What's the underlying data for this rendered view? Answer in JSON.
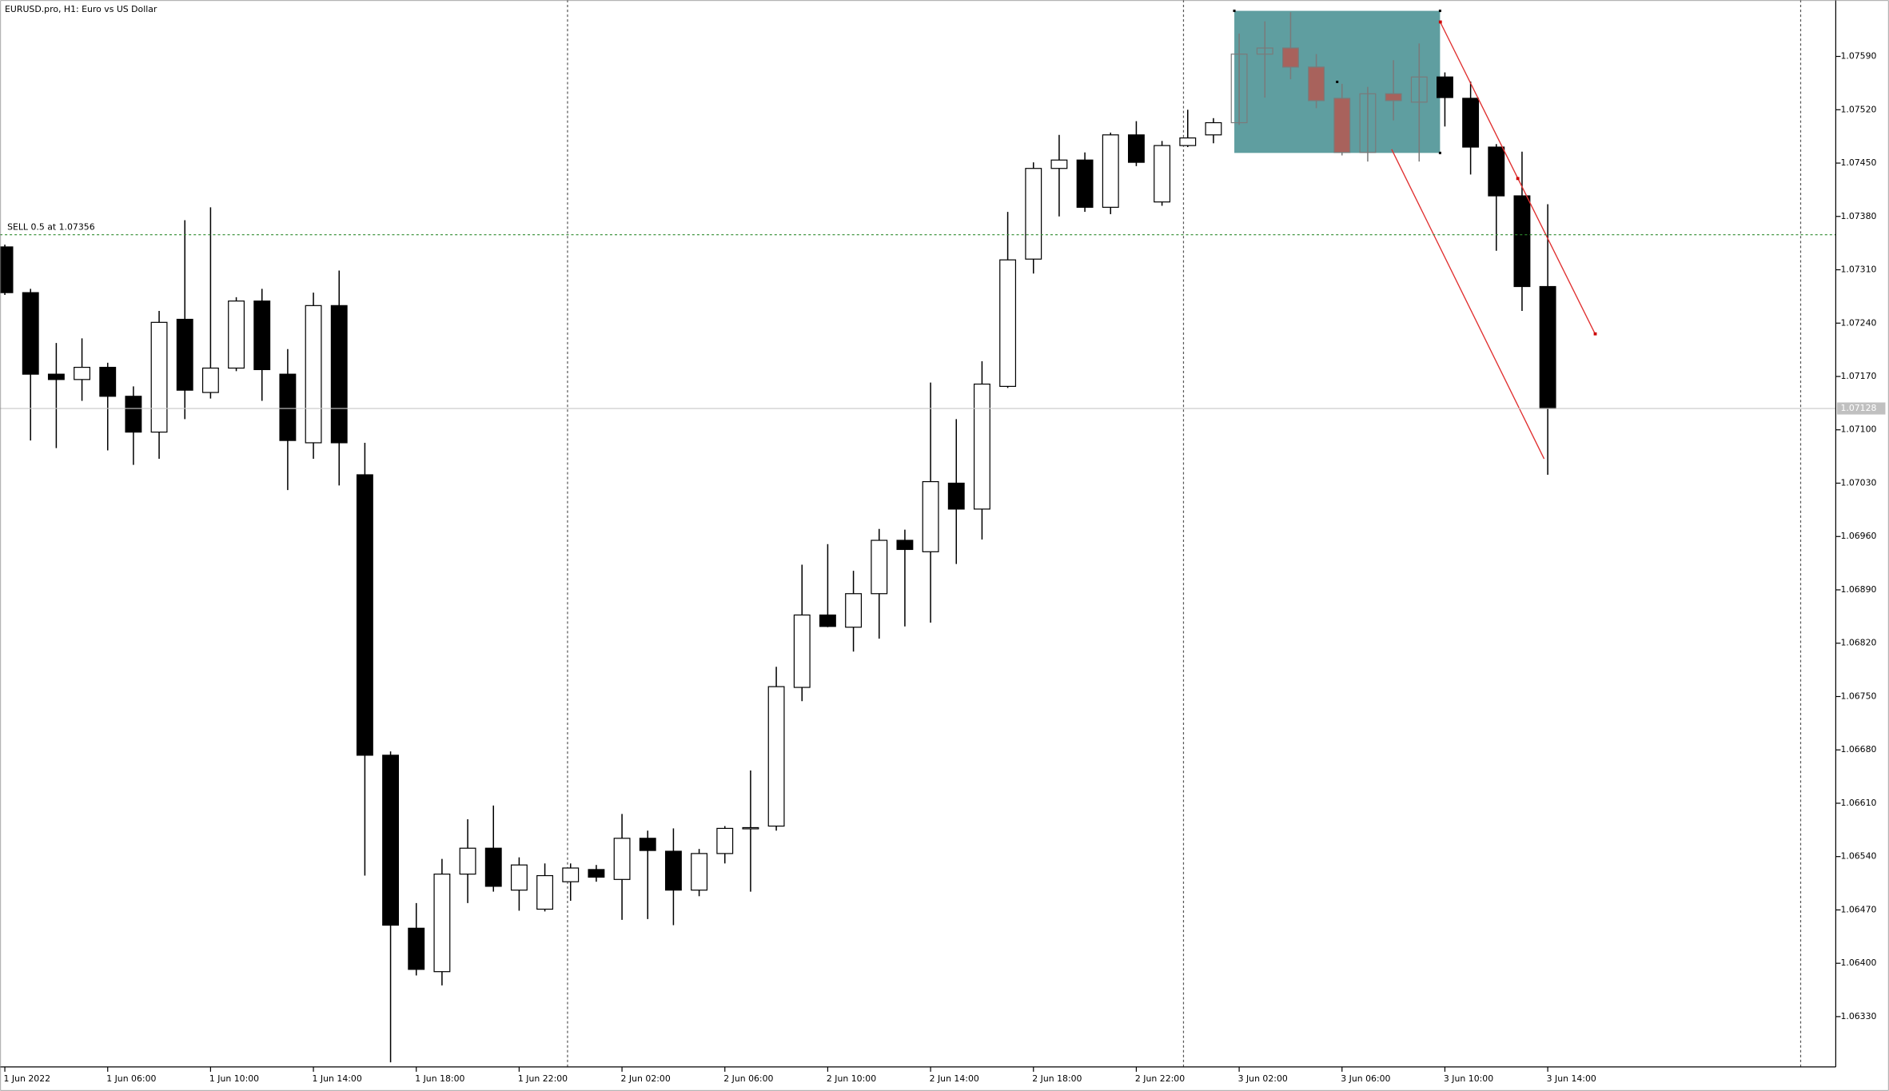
{
  "chart_data": {
    "type": "candlestick",
    "title": "EURUSD.pro, H1:  Euro vs US Dollar",
    "categories": [
      "1 Jun 2022",
      null,
      null,
      null,
      "1 Jun 06:00",
      null,
      null,
      null,
      "1 Jun 10:00",
      null,
      null,
      null,
      "1 Jun 14:00",
      null,
      null,
      null,
      "1 Jun 18:00",
      null,
      null,
      null,
      "1 Jun 22:00",
      null,
      null,
      null,
      "2 Jun 02:00",
      null,
      null,
      null,
      "2 Jun 06:00",
      null,
      null,
      null,
      "2 Jun 10:00",
      null,
      null,
      null,
      "2 Jun 14:00",
      null,
      null,
      null,
      "2 Jun 18:00",
      null,
      null,
      null,
      "2 Jun 22:00",
      null,
      null,
      null,
      "3 Jun 02:00",
      null,
      null,
      null,
      "3 Jun 06:00",
      null,
      null,
      null,
      "3 Jun 10:00",
      null,
      null,
      null,
      "3 Jun 14:00"
    ],
    "open": [
      1.0734,
      1.0728,
      1.07173,
      1.07166,
      1.07182,
      1.07144,
      1.07097,
      1.07245,
      1.07149,
      1.07181,
      1.07269,
      1.07173,
      1.07083,
      1.07263,
      1.07041,
      1.06673,
      1.06446,
      1.06389,
      1.06517,
      1.06551,
      1.06496,
      1.06471,
      1.06507,
      1.06523,
      1.0651,
      1.06564,
      1.06547,
      1.06496,
      1.06544,
      1.06577,
      1.0658,
      1.06762,
      1.06857,
      1.06841,
      1.06885,
      1.06955,
      1.0694,
      1.0703,
      1.06996,
      1.07157,
      1.07324,
      1.07443,
      1.07454,
      1.07392,
      1.07487,
      1.07399,
      1.07473,
      1.07487,
      1.07503,
      1.07593,
      1.07601,
      1.07576,
      1.07535,
      1.07464,
      1.07541,
      1.0753,
      1.07563,
      1.07535,
      1.07471,
      1.07407,
      1.07288
    ],
    "high": [
      1.07343,
      1.07285,
      1.07214,
      1.0722,
      1.07188,
      1.07157,
      1.07256,
      1.07375,
      1.07392,
      1.07274,
      1.07285,
      1.07206,
      1.0728,
      1.07309,
      1.07083,
      1.06678,
      1.06479,
      1.06537,
      1.06589,
      1.06607,
      1.06539,
      1.06531,
      1.06531,
      1.06529,
      1.06596,
      1.06574,
      1.06577,
      1.0655,
      1.0658,
      1.06653,
      1.06789,
      1.06923,
      1.0695,
      1.06915,
      1.0697,
      1.06969,
      1.07162,
      1.07114,
      1.0719,
      1.07386,
      1.07451,
      1.07487,
      1.07464,
      1.0749,
      1.07505,
      1.07479,
      1.0752,
      1.07509,
      1.0762,
      1.07636,
      1.07648,
      1.07593,
      1.07554,
      1.0755,
      1.07585,
      1.07607,
      1.07569,
      1.07557,
      1.07475,
      1.07465,
      1.07396
    ],
    "low": [
      1.07277,
      1.07086,
      1.07076,
      1.07138,
      1.07073,
      1.07054,
      1.07062,
      1.07114,
      1.07141,
      1.07177,
      1.07138,
      1.07021,
      1.07062,
      1.07027,
      1.06515,
      1.0627,
      1.06384,
      1.06371,
      1.06479,
      1.06494,
      1.06469,
      1.06468,
      1.06482,
      1.06507,
      1.06457,
      1.06458,
      1.0645,
      1.06488,
      1.06531,
      1.06494,
      1.06574,
      1.06744,
      1.06841,
      1.06809,
      1.06826,
      1.06842,
      1.06847,
      1.06924,
      1.06956,
      1.07155,
      1.07305,
      1.0738,
      1.07386,
      1.07383,
      1.07446,
      1.07394,
      1.07471,
      1.07476,
      1.075,
      1.07536,
      1.0756,
      1.07522,
      1.0746,
      1.07452,
      1.07506,
      1.07452,
      1.07498,
      1.07435,
      1.07335,
      1.07256,
      1.07041
    ],
    "close": [
      1.0728,
      1.07173,
      1.07166,
      1.07182,
      1.07144,
      1.07097,
      1.07241,
      1.07152,
      1.07181,
      1.07269,
      1.07179,
      1.07086,
      1.07263,
      1.07083,
      1.06673,
      1.0645,
      1.06392,
      1.06517,
      1.06551,
      1.06501,
      1.06529,
      1.06515,
      1.06525,
      1.06513,
      1.06564,
      1.06548,
      1.06496,
      1.06544,
      1.06577,
      1.06578,
      1.06763,
      1.06857,
      1.06842,
      1.06885,
      1.06955,
      1.06943,
      1.07032,
      1.06996,
      1.0716,
      1.07323,
      1.07443,
      1.07454,
      1.07392,
      1.07487,
      1.07451,
      1.07473,
      1.07483,
      1.07503,
      1.07593,
      1.07601,
      1.07576,
      1.07532,
      1.07464,
      1.07541,
      1.07532,
      1.07563,
      1.07536,
      1.07471,
      1.07407,
      1.07288,
      1.07128
    ],
    "up_color": "#ffffff",
    "down_color": "#000000",
    "ylim": [
      1.06264,
      1.07664
    ],
    "yticks": [
      {
        "value": 1.0759,
        "label": "1.07590"
      },
      {
        "value": 1.0752,
        "label": "1.07520"
      },
      {
        "value": 1.0745,
        "label": "1.07450"
      },
      {
        "value": 1.0738,
        "label": "1.07380"
      },
      {
        "value": 1.0731,
        "label": "1.07310"
      },
      {
        "value": 1.0724,
        "label": "1.07240"
      },
      {
        "value": 1.0717,
        "label": "1.07170"
      },
      {
        "value": 1.071,
        "label": "1.07100"
      },
      {
        "value": 1.0703,
        "label": "1.07030"
      },
      {
        "value": 1.0696,
        "label": "1.06960"
      },
      {
        "value": 1.0689,
        "label": "1.06890"
      },
      {
        "value": 1.0682,
        "label": "1.06820"
      },
      {
        "value": 1.0675,
        "label": "1.06750"
      },
      {
        "value": 1.0668,
        "label": "1.06680"
      },
      {
        "value": 1.0661,
        "label": "1.06610"
      },
      {
        "value": 1.0654,
        "label": "1.06540"
      },
      {
        "value": 1.0647,
        "label": "1.06470"
      },
      {
        "value": 1.064,
        "label": "1.06400"
      },
      {
        "value": 1.0633,
        "label": "1.06330"
      }
    ],
    "current_price": 1.07128,
    "order": {
      "label": "SELL 0.5 at 1.07356",
      "price": 1.07356,
      "color": "#2e8b2e"
    }
  }
}
